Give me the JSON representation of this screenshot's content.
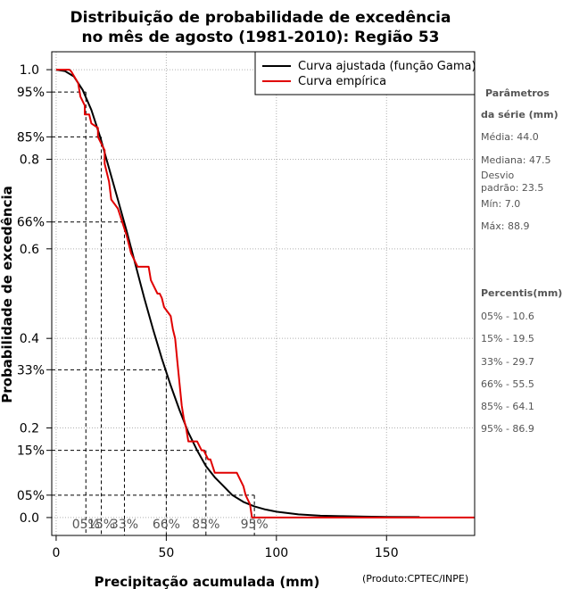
{
  "chart_data": {
    "type": "line",
    "title": [
      "Distribuição de probabilidade de excedência",
      "no mês de agosto (1981-2010): Região 53"
    ],
    "xlabel": "Precipitação acumulada (mm)",
    "ylabel": "Probabilidade de excedência",
    "credit": "(Produto:CPTEC/INPE)",
    "xlim": [
      -2,
      190
    ],
    "ylim": [
      -0.04,
      1.04
    ],
    "x_ticks": [
      0,
      50,
      100,
      150
    ],
    "y_ticks": [
      0.0,
      0.2,
      0.4,
      0.6,
      0.8,
      1.0
    ],
    "y_tick_labels": [
      "0.0",
      "0.2",
      "0.4",
      "0.6",
      "0.8",
      "1.0"
    ],
    "y_percent_ticks": [
      {
        "value": 0.05,
        "label": "05%"
      },
      {
        "value": 0.15,
        "label": "15%"
      },
      {
        "value": 0.33,
        "label": "33%"
      },
      {
        "value": 0.66,
        "label": "66%"
      },
      {
        "value": 0.85,
        "label": "85%"
      },
      {
        "value": 0.95,
        "label": "95%"
      }
    ],
    "percentile_markers": [
      {
        "label": "05%",
        "x": 13.5,
        "y": 0.95
      },
      {
        "label": "15%",
        "x": 20.5,
        "y": 0.85
      },
      {
        "label": "33%",
        "x": 31.0,
        "y": 0.66
      },
      {
        "label": "66%",
        "x": 50.0,
        "y": 0.33
      },
      {
        "label": "85%",
        "x": 68.0,
        "y": 0.15
      },
      {
        "label": "95%",
        "x": 90.0,
        "y": 0.05
      }
    ],
    "grid": true,
    "legend_position": "top-right",
    "series": [
      {
        "name": "Curva ajustada (função Gama)",
        "color": "#000000",
        "x": [
          0,
          4,
          8,
          12,
          16,
          20,
          24,
          28,
          32,
          36,
          40,
          44,
          48,
          52,
          56,
          60,
          64,
          68,
          72,
          76,
          80,
          85,
          90,
          95,
          100,
          110,
          120,
          130,
          140,
          150,
          165
        ],
        "y": [
          1.0,
          0.997,
          0.985,
          0.955,
          0.91,
          0.85,
          0.78,
          0.71,
          0.64,
          0.565,
          0.49,
          0.42,
          0.355,
          0.295,
          0.24,
          0.19,
          0.15,
          0.115,
          0.09,
          0.07,
          0.05,
          0.035,
          0.025,
          0.018,
          0.013,
          0.007,
          0.004,
          0.003,
          0.002,
          0.0015,
          0.001
        ]
      },
      {
        "name": "Curva empírica",
        "color": "#e00000",
        "x": [
          0,
          6,
          7,
          10,
          11,
          13,
          13,
          15,
          16,
          19,
          19,
          20,
          22,
          22,
          24,
          25,
          28,
          30,
          32,
          34,
          36,
          37,
          42,
          43,
          46,
          47,
          48,
          49,
          52,
          53,
          54,
          55,
          56,
          57,
          58,
          59,
          60,
          61,
          64,
          65,
          66,
          67,
          68,
          69,
          70,
          72,
          76,
          78,
          82,
          85,
          86,
          88,
          88.9,
          190
        ],
        "y": [
          1.0,
          1.0,
          0.995,
          0.97,
          0.94,
          0.92,
          0.9,
          0.9,
          0.88,
          0.87,
          0.85,
          0.84,
          0.82,
          0.79,
          0.75,
          0.71,
          0.69,
          0.66,
          0.63,
          0.59,
          0.57,
          0.56,
          0.56,
          0.53,
          0.5,
          0.5,
          0.49,
          0.47,
          0.45,
          0.42,
          0.4,
          0.35,
          0.3,
          0.25,
          0.22,
          0.2,
          0.17,
          0.17,
          0.17,
          0.16,
          0.15,
          0.15,
          0.14,
          0.13,
          0.13,
          0.1,
          0.1,
          0.1,
          0.1,
          0.07,
          0.05,
          0.03,
          0.0,
          0.0
        ]
      }
    ],
    "side_panel": {
      "params_title_line1": "Parâmetros",
      "params_title_line2": "da série (mm)",
      "media": "Média: 44.0",
      "mediana": "Mediana: 47.5",
      "desvio_line1": "Desvio",
      "desvio_line2": "padrão: 23.5",
      "min": "Mín: 7.0",
      "max": "Máx: 88.9",
      "percentis_title": "Percentis(mm)",
      "percentis": [
        "05% - 10.6",
        "15% - 19.5",
        "33% - 29.7",
        "66% - 55.5",
        "85% - 64.1",
        "95% - 86.9"
      ]
    }
  }
}
